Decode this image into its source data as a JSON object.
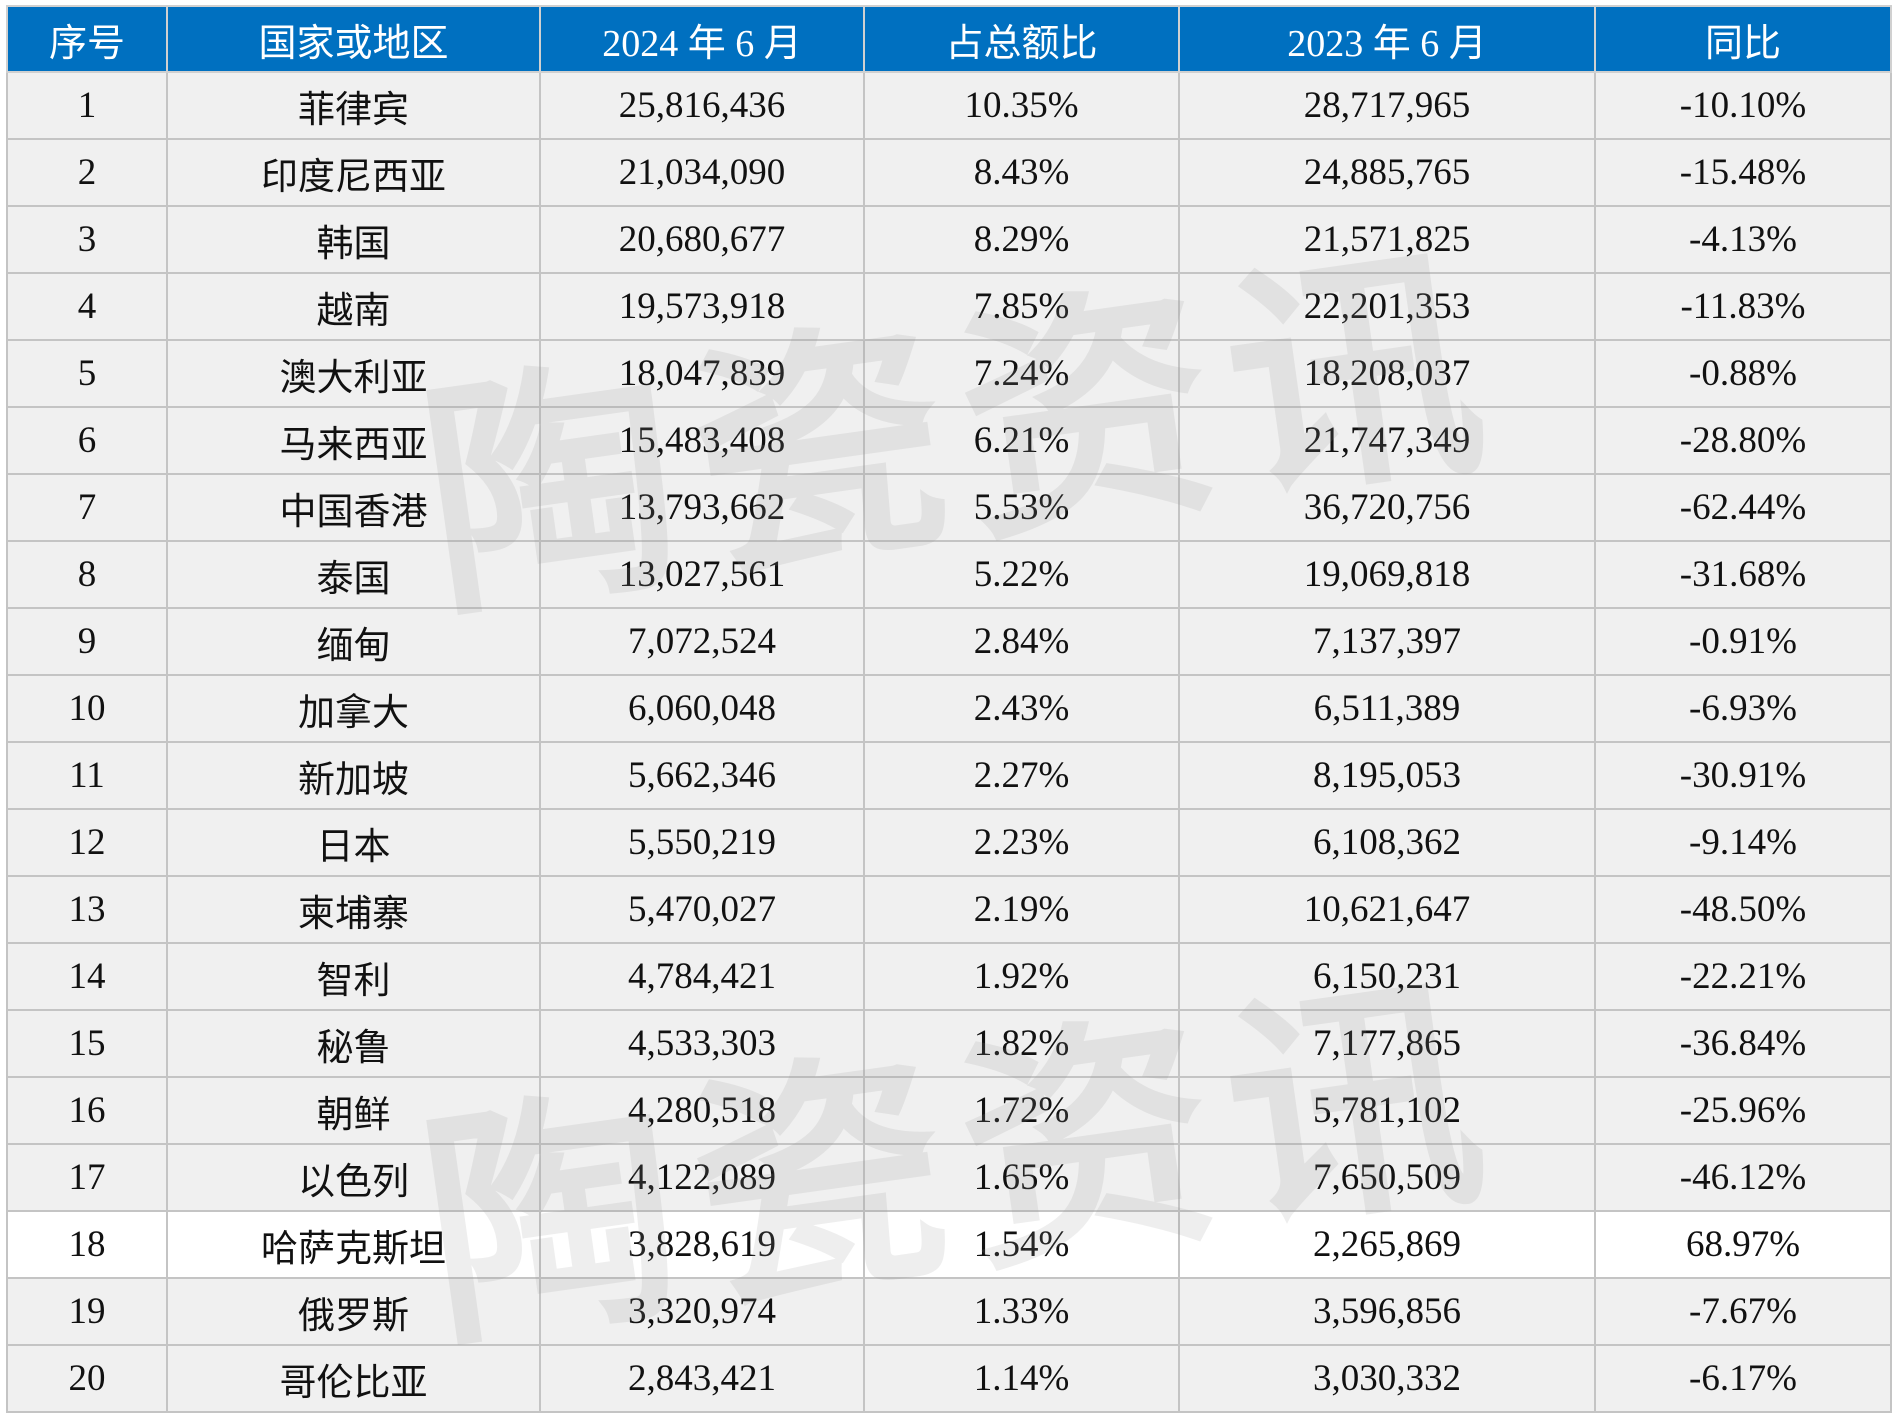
{
  "watermark": "陶瓷资讯",
  "colors": {
    "header_bg": "#0070c0",
    "row_bg": "#f0f0f0",
    "highlight_row_bg": "#ffffff"
  },
  "table": {
    "headers": [
      "序号",
      "国家或地区",
      "2024 年 6 月",
      "占总额比",
      "2023 年 6 月",
      "同比"
    ],
    "highlight_row": 18,
    "rows": [
      [
        "1",
        "菲律宾",
        "25,816,436",
        "10.35%",
        "28,717,965",
        "-10.10%"
      ],
      [
        "2",
        "印度尼西亚",
        "21,034,090",
        "8.43%",
        "24,885,765",
        "-15.48%"
      ],
      [
        "3",
        "韩国",
        "20,680,677",
        "8.29%",
        "21,571,825",
        "-4.13%"
      ],
      [
        "4",
        "越南",
        "19,573,918",
        "7.85%",
        "22,201,353",
        "-11.83%"
      ],
      [
        "5",
        "澳大利亚",
        "18,047,839",
        "7.24%",
        "18,208,037",
        "-0.88%"
      ],
      [
        "6",
        "马来西亚",
        "15,483,408",
        "6.21%",
        "21,747,349",
        "-28.80%"
      ],
      [
        "7",
        "中国香港",
        "13,793,662",
        "5.53%",
        "36,720,756",
        "-62.44%"
      ],
      [
        "8",
        "泰国",
        "13,027,561",
        "5.22%",
        "19,069,818",
        "-31.68%"
      ],
      [
        "9",
        "缅甸",
        "7,072,524",
        "2.84%",
        "7,137,397",
        "-0.91%"
      ],
      [
        "10",
        "加拿大",
        "6,060,048",
        "2.43%",
        "6,511,389",
        "-6.93%"
      ],
      [
        "11",
        "新加坡",
        "5,662,346",
        "2.27%",
        "8,195,053",
        "-30.91%"
      ],
      [
        "12",
        "日本",
        "5,550,219",
        "2.23%",
        "6,108,362",
        "-9.14%"
      ],
      [
        "13",
        "柬埔寨",
        "5,470,027",
        "2.19%",
        "10,621,647",
        "-48.50%"
      ],
      [
        "14",
        "智利",
        "4,784,421",
        "1.92%",
        "6,150,231",
        "-22.21%"
      ],
      [
        "15",
        "秘鲁",
        "4,533,303",
        "1.82%",
        "7,177,865",
        "-36.84%"
      ],
      [
        "16",
        "朝鲜",
        "4,280,518",
        "1.72%",
        "5,781,102",
        "-25.96%"
      ],
      [
        "17",
        "以色列",
        "4,122,089",
        "1.65%",
        "7,650,509",
        "-46.12%"
      ],
      [
        "18",
        "哈萨克斯坦",
        "3,828,619",
        "1.54%",
        "2,265,869",
        "68.97%"
      ],
      [
        "19",
        "俄罗斯",
        "3,320,974",
        "1.33%",
        "3,596,856",
        "-7.67%"
      ],
      [
        "20",
        "哥伦比亚",
        "2,843,421",
        "1.14%",
        "3,030,332",
        "-6.17%"
      ]
    ]
  }
}
